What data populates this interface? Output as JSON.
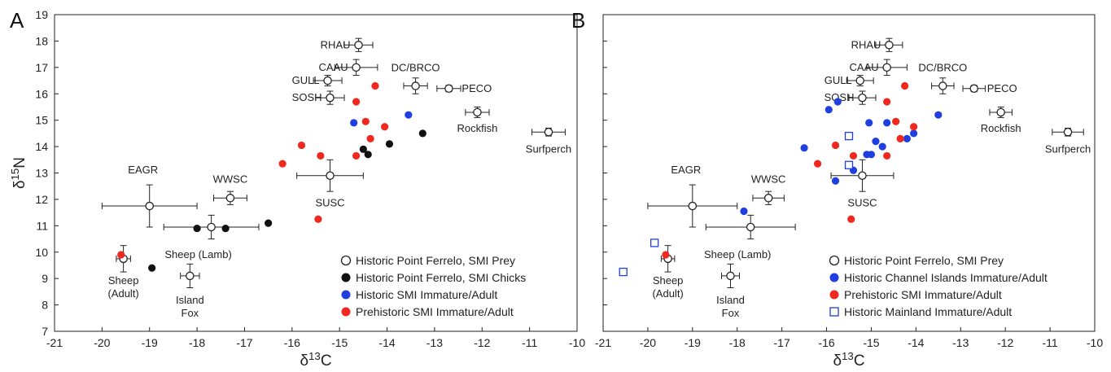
{
  "colors": {
    "prey": "#ffffff",
    "chicks": "#111111",
    "historic_smi": "#1f3fe0",
    "prehistoric": "#f0281e",
    "channel_islands": "#1f3fe0",
    "mainland": "#1f3fe0"
  },
  "chart_data": [
    {
      "type": "scatter",
      "panel_label": "A",
      "xlabel": "δ13C",
      "ylabel": "δ15N",
      "xlim": [
        -21,
        -10
      ],
      "ylim": [
        7,
        19
      ],
      "x_ticks": [
        "-21",
        "-20",
        "-19",
        "-18",
        "-17",
        "-16",
        "-15",
        "-14",
        "-13",
        "-12",
        "-11",
        "-10"
      ],
      "y_ticks": [
        "7",
        "8",
        "9",
        "10",
        "11",
        "12",
        "13",
        "14",
        "15",
        "16",
        "17",
        "18",
        "19"
      ],
      "legend_position": "bottom-right",
      "grid": false,
      "prey": [
        {
          "label": "RHAU",
          "x": -14.6,
          "y": 17.85,
          "xerr": 0.3,
          "yerr": 0.25
        },
        {
          "label": "CAAU",
          "x": -14.65,
          "y": 17.0,
          "xerr": 0.45,
          "yerr": 0.3
        },
        {
          "label": "GULL",
          "x": -15.25,
          "y": 16.5,
          "xerr": 0.3,
          "yerr": 0.2
        },
        {
          "label": "SOSH",
          "x": -15.2,
          "y": 15.85,
          "xerr": 0.3,
          "yerr": 0.25
        },
        {
          "label": "DC/BRCO",
          "x": -13.4,
          "y": 16.3,
          "xerr": 0.25,
          "yerr": 0.3
        },
        {
          "label": "PECO",
          "x": -12.7,
          "y": 16.2,
          "xerr": 0.25,
          "yerr": 0.12
        },
        {
          "label": "Rockfish",
          "x": -12.1,
          "y": 15.3,
          "xerr": 0.25,
          "yerr": 0.2
        },
        {
          "label": "Surfperch",
          "x": -10.6,
          "y": 14.55,
          "xerr": 0.35,
          "yerr": 0.15
        },
        {
          "label": "EAGR",
          "x": -19.0,
          "y": 11.75,
          "xerr": 1.0,
          "yerr": 0.8
        },
        {
          "label": "WWSC",
          "x": -17.3,
          "y": 12.05,
          "xerr": 0.35,
          "yerr": 0.25
        },
        {
          "label": "SUSC",
          "x": -15.2,
          "y": 12.9,
          "xerr": 0.7,
          "yerr": 0.6
        },
        {
          "label": "Sheep (Lamb)",
          "x": -17.7,
          "y": 10.95,
          "xerr": 1.0,
          "yerr": 0.45
        },
        {
          "label": "Sheep\n(Adult)",
          "x": -19.55,
          "y": 9.75,
          "xerr": 0.15,
          "yerr": 0.5
        },
        {
          "label": "Island\nFox",
          "x": -18.15,
          "y": 9.1,
          "xerr": 0.2,
          "yerr": 0.45
        }
      ],
      "series": [
        {
          "name": "Historic Point Ferrelo, SMI Chicks",
          "color_key": "chicks",
          "marker": "filled-circle",
          "x": [
            -18.0,
            -17.4,
            -16.5,
            -14.5,
            -14.4,
            -13.95,
            -13.25,
            -18.95
          ],
          "y": [
            10.9,
            10.9,
            11.1,
            13.9,
            13.7,
            14.1,
            14.5,
            9.4
          ]
        },
        {
          "name": "Historic SMI Immature/Adult",
          "color_key": "historic_smi",
          "marker": "filled-circle",
          "x": [
            -14.7,
            -13.55
          ],
          "y": [
            14.9,
            15.2
          ]
        },
        {
          "name": "Prehistoric SMI Immature/Adult",
          "color_key": "prehistoric",
          "marker": "filled-circle",
          "x": [
            -14.25,
            -14.65,
            -14.45,
            -14.05,
            -14.35,
            -15.8,
            -16.2,
            -15.4,
            -14.65,
            -15.45,
            -19.6
          ],
          "y": [
            16.3,
            15.7,
            14.95,
            14.75,
            14.3,
            14.05,
            13.35,
            13.65,
            13.65,
            11.25,
            9.9
          ]
        }
      ],
      "legend": [
        {
          "label": "Historic Point Ferrelo, SMI Prey",
          "marker": "open-circle",
          "color_key": "prey"
        },
        {
          "label": "Historic Point Ferrelo, SMI Chicks",
          "marker": "filled-circle",
          "color_key": "chicks"
        },
        {
          "label": "Historic SMI Immature/Adult",
          "marker": "filled-circle",
          "color_key": "historic_smi"
        },
        {
          "label": "Prehistoric SMI Immature/Adult",
          "marker": "filled-circle",
          "color_key": "prehistoric"
        }
      ]
    },
    {
      "type": "scatter",
      "panel_label": "B",
      "xlabel": "δ13C",
      "ylabel": "",
      "xlim": [
        -21,
        -10
      ],
      "ylim": [
        7,
        19
      ],
      "x_ticks": [
        "-21",
        "-20",
        "-19",
        "-18",
        "-17",
        "-16",
        "-15",
        "-14",
        "-13",
        "-12",
        "-11",
        "-10"
      ],
      "y_ticks": [],
      "legend_position": "bottom-right",
      "grid": false,
      "prey": [
        {
          "label": "RHAU",
          "x": -14.6,
          "y": 17.85,
          "xerr": 0.3,
          "yerr": 0.25
        },
        {
          "label": "CAAU",
          "x": -14.65,
          "y": 17.0,
          "xerr": 0.45,
          "yerr": 0.3
        },
        {
          "label": "GULL",
          "x": -15.25,
          "y": 16.5,
          "xerr": 0.3,
          "yerr": 0.2
        },
        {
          "label": "SOSH",
          "x": -15.2,
          "y": 15.85,
          "xerr": 0.3,
          "yerr": 0.25
        },
        {
          "label": "DC/BRCO",
          "x": -13.4,
          "y": 16.3,
          "xerr": 0.25,
          "yerr": 0.3
        },
        {
          "label": "PECO",
          "x": -12.7,
          "y": 16.2,
          "xerr": 0.25,
          "yerr": 0.12
        },
        {
          "label": "Rockfish",
          "x": -12.1,
          "y": 15.3,
          "xerr": 0.25,
          "yerr": 0.2
        },
        {
          "label": "Surfperch",
          "x": -10.6,
          "y": 14.55,
          "xerr": 0.35,
          "yerr": 0.15
        },
        {
          "label": "EAGR",
          "x": -19.0,
          "y": 11.75,
          "xerr": 1.0,
          "yerr": 0.8
        },
        {
          "label": "WWSC",
          "x": -17.3,
          "y": 12.05,
          "xerr": 0.35,
          "yerr": 0.25
        },
        {
          "label": "SUSC",
          "x": -15.2,
          "y": 12.9,
          "xerr": 0.7,
          "yerr": 0.6
        },
        {
          "label": "Sheep (Lamb)",
          "x": -17.7,
          "y": 10.95,
          "xerr": 1.0,
          "yerr": 0.45
        },
        {
          "label": "Sheep\n(Adult)",
          "x": -19.55,
          "y": 9.75,
          "xerr": 0.15,
          "yerr": 0.5
        },
        {
          "label": "Island\nFox",
          "x": -18.15,
          "y": 9.1,
          "xerr": 0.2,
          "yerr": 0.45
        }
      ],
      "series": [
        {
          "name": "Historic Channel Islands Immature/Adult",
          "color_key": "channel_islands",
          "marker": "filled-circle",
          "x": [
            -15.75,
            -15.95,
            -15.05,
            -14.65,
            -14.05,
            -13.5,
            -14.2,
            -14.9,
            -14.75,
            -15.0,
            -15.1,
            -15.4,
            -15.8,
            -16.5,
            -17.85
          ],
          "y": [
            15.7,
            15.4,
            14.9,
            14.9,
            14.5,
            15.2,
            14.3,
            14.2,
            14.0,
            13.7,
            13.7,
            13.1,
            12.7,
            13.95,
            11.55
          ]
        },
        {
          "name": "Prehistoric SMI Immature/Adult",
          "color_key": "prehistoric",
          "marker": "filled-circle",
          "x": [
            -14.25,
            -14.65,
            -14.45,
            -14.05,
            -14.35,
            -15.8,
            -16.2,
            -15.4,
            -14.65,
            -15.45,
            -19.6
          ],
          "y": [
            16.3,
            15.7,
            14.95,
            14.75,
            14.3,
            14.05,
            13.35,
            13.65,
            13.65,
            11.25,
            9.9
          ]
        },
        {
          "name": "Historic Mainland Immature/Adult",
          "color_key": "mainland",
          "marker": "open-square",
          "x": [
            -15.5,
            -15.5,
            -19.85,
            -20.55
          ],
          "y": [
            14.4,
            13.3,
            10.35,
            9.25
          ]
        }
      ],
      "legend": [
        {
          "label": "Historic Point Ferrelo, SMI Prey",
          "marker": "open-circle",
          "color_key": "prey"
        },
        {
          "label": "Historic Channel Islands Immature/Adult",
          "marker": "filled-circle",
          "color_key": "channel_islands"
        },
        {
          "label": "Prehistoric SMI Immature/Adult",
          "marker": "filled-circle",
          "color_key": "prehistoric"
        },
        {
          "label": "Historic Mainland Immature/Adult",
          "marker": "open-square",
          "color_key": "mainland"
        }
      ]
    }
  ]
}
